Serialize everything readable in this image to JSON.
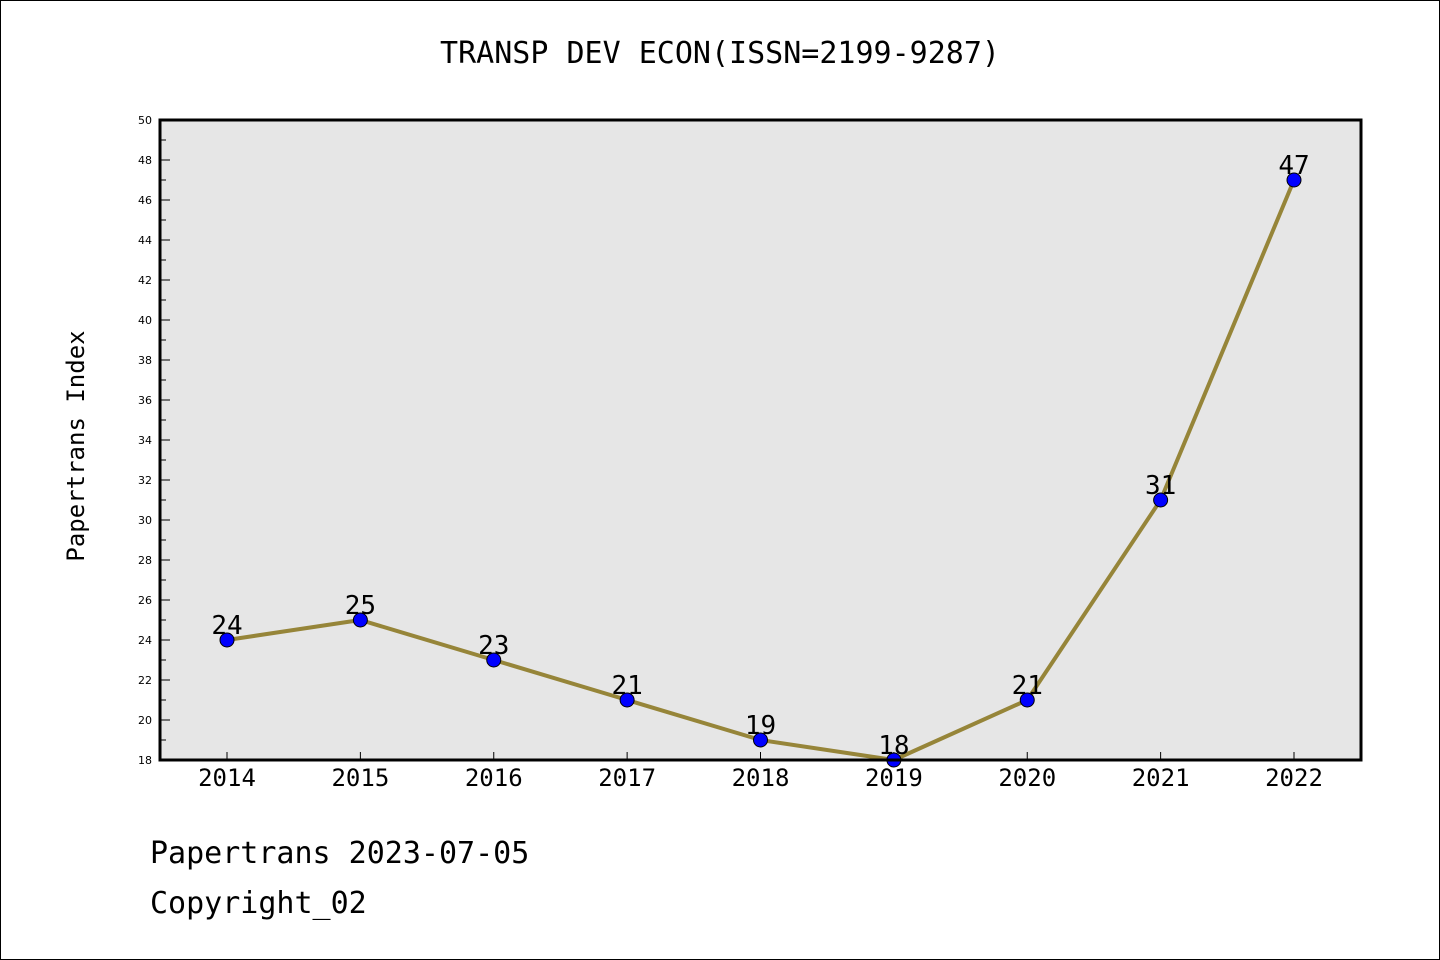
{
  "chart_data": {
    "type": "line",
    "title": "TRANSP DEV ECON(ISSN=2199-9287)",
    "xlabel": "",
    "ylabel": "Papertrans Index",
    "categories": [
      "2014",
      "2015",
      "2016",
      "2017",
      "2018",
      "2019",
      "2020",
      "2021",
      "2022"
    ],
    "series": [
      {
        "values": [
          24,
          25,
          23,
          21,
          19,
          18,
          21,
          31,
          47
        ],
        "line_color": "#968539",
        "marker_color": "#0000ff"
      }
    ],
    "ylim": [
      18,
      50
    ],
    "yticks": [
      18,
      20,
      22,
      24,
      26,
      28,
      30,
      32,
      34,
      36,
      38,
      40,
      42,
      44,
      46,
      48,
      50
    ],
    "grid": false,
    "plot_background": "#e6e6e6"
  },
  "footer": {
    "date_text": "Papertrans 2023-07-05",
    "copyright_text": "Copyright_02"
  }
}
